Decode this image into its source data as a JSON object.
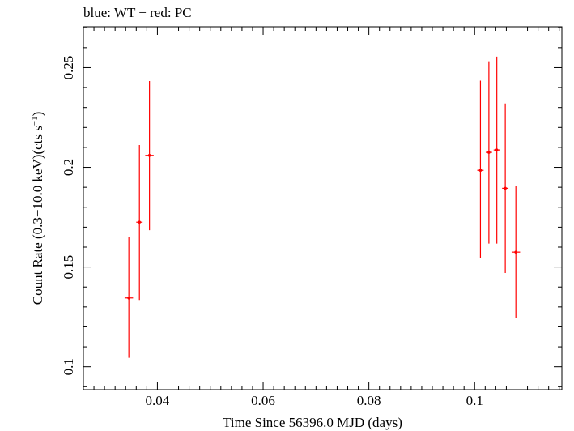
{
  "chart_data": {
    "type": "scatter",
    "title": "blue: WT − red: PC",
    "xlabel": "Time Since 56396.0 MJD (days)",
    "ylabel": "Count Rate (0.3−10.0 keV)(cts s",
    "ylabel_sup": "−1",
    "ylabel_tail": ")",
    "xlim": [
      0.026,
      0.1165
    ],
    "ylim": [
      0.0885,
      0.2705
    ],
    "x_ticks": [
      {
        "value": 0.04,
        "label": "0.04"
      },
      {
        "value": 0.06,
        "label": "0.06"
      },
      {
        "value": 0.08,
        "label": "0.08"
      },
      {
        "value": 0.1,
        "label": "0.1"
      }
    ],
    "y_ticks": [
      {
        "value": 0.1,
        "label": "0.1"
      },
      {
        "value": 0.15,
        "label": "0.15"
      },
      {
        "value": 0.2,
        "label": "0.2"
      },
      {
        "value": 0.25,
        "label": "0.25"
      }
    ],
    "series": [
      {
        "color": "#ff0000",
        "points": [
          {
            "x": 0.0346,
            "xerr": 0.0008,
            "y": 0.1345,
            "ylo": 0.1045,
            "yhi": 0.165
          },
          {
            "x": 0.0366,
            "xerr": 0.0006,
            "y": 0.1725,
            "ylo": 0.1335,
            "yhi": 0.2112
          },
          {
            "x": 0.0385,
            "xerr": 0.0008,
            "y": 0.206,
            "ylo": 0.1685,
            "yhi": 0.2433
          },
          {
            "x": 0.1011,
            "xerr": 0.0006,
            "y": 0.1985,
            "ylo": 0.1545,
            "yhi": 0.2435
          },
          {
            "x": 0.1027,
            "xerr": 0.0006,
            "y": 0.2075,
            "ylo": 0.1618,
            "yhi": 0.2532
          },
          {
            "x": 0.1042,
            "xerr": 0.0006,
            "y": 0.2087,
            "ylo": 0.1618,
            "yhi": 0.2555
          },
          {
            "x": 0.1058,
            "xerr": 0.0006,
            "y": 0.1895,
            "ylo": 0.147,
            "yhi": 0.232
          },
          {
            "x": 0.1078,
            "xerr": 0.0008,
            "y": 0.1575,
            "ylo": 0.1245,
            "yhi": 0.1905
          }
        ]
      }
    ]
  }
}
